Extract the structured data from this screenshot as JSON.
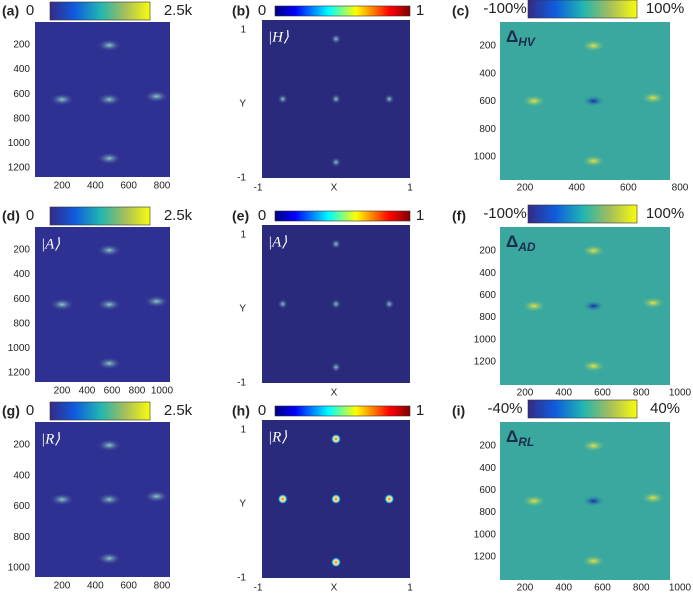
{
  "panels": [
    {
      "label": "(a)",
      "colorbar": {
        "min": "0",
        "max": "2.5k"
      },
      "yticks": [
        "200",
        "400",
        "600",
        "800",
        "1000",
        "1200"
      ],
      "xticks": [
        "200",
        "400",
        "600",
        "800"
      ]
    },
    {
      "label": "(b)",
      "colorbar": {
        "min": "0",
        "max": "1"
      },
      "ket": "|H⟩",
      "yticks": [
        "1",
        "Y",
        "-1"
      ],
      "xticks": [
        "-1",
        "X",
        "1"
      ]
    },
    {
      "label": "(c)",
      "colorbar": {
        "min": "-100%",
        "max": "100%"
      },
      "delta": {
        "symbol": "Δ",
        "subscript": "HV"
      },
      "yticks": [
        "200",
        "400",
        "600",
        "800",
        "1000"
      ],
      "xticks": [
        "200",
        "400",
        "600",
        "800"
      ]
    },
    {
      "label": "(d)",
      "colorbar": {
        "min": "0",
        "max": "2.5k"
      },
      "ket": "|A⟩",
      "yticks": [
        "200",
        "400",
        "600",
        "800",
        "1000",
        "1200"
      ],
      "xticks": [
        "200",
        "400",
        "600",
        "800",
        "1000"
      ]
    },
    {
      "label": "(e)",
      "colorbar": {
        "min": "0",
        "max": "1"
      },
      "ket": "|A⟩",
      "yticks": [
        "1",
        "Y",
        "-1"
      ],
      "xticks": [
        "X"
      ]
    },
    {
      "label": "(f)",
      "colorbar": {
        "min": "-100%",
        "max": "100%"
      },
      "delta": {
        "symbol": "Δ",
        "subscript": "AD"
      },
      "yticks": [
        "200",
        "400",
        "600",
        "800",
        "1000",
        "1200"
      ],
      "xticks": [
        "200",
        "400",
        "600",
        "800",
        "1000"
      ]
    },
    {
      "label": "(g)",
      "colorbar": {
        "min": "0",
        "max": "2.5k"
      },
      "ket": "|R⟩",
      "yticks": [
        "200",
        "400",
        "600",
        "800",
        "1000"
      ],
      "xticks": [
        "200",
        "400",
        "600",
        "800"
      ]
    },
    {
      "label": "(h)",
      "colorbar": {
        "min": "0",
        "max": "1"
      },
      "ket": "|R⟩",
      "yticks": [
        "1",
        "Y",
        "-1"
      ],
      "xticks": [
        "-1",
        "X",
        "1"
      ]
    },
    {
      "label": "(i)",
      "colorbar": {
        "min": "-40%",
        "max": "40%"
      },
      "delta": {
        "symbol": "Δ",
        "subscript": "RL"
      },
      "yticks": [
        "200",
        "400",
        "600",
        "800",
        "1000",
        "1200"
      ],
      "xticks": [
        "200",
        "400",
        "600",
        "800",
        "1000"
      ]
    }
  ]
}
